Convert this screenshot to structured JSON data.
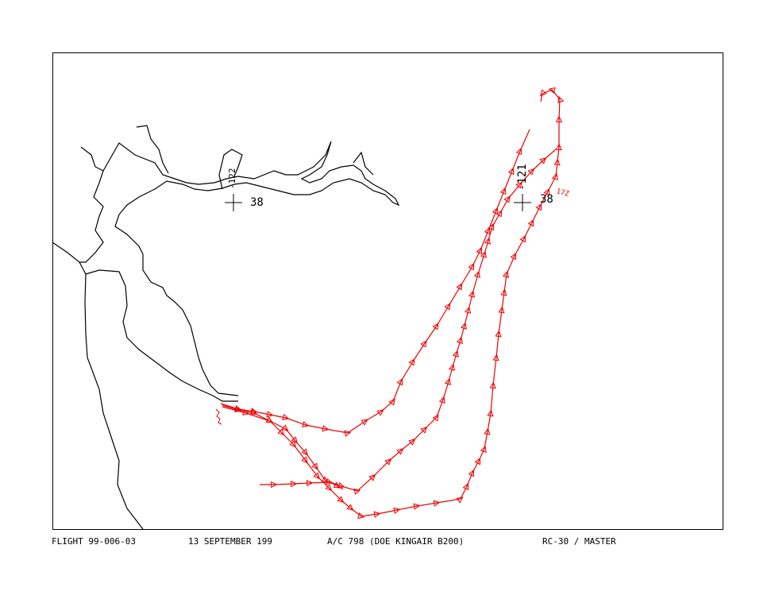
{
  "map": {
    "grid_marks": [
      {
        "longitude": "-122",
        "latitude": "38"
      },
      {
        "longitude": "-121",
        "latitude": "38"
      }
    ],
    "time_label": "17Z",
    "footer": {
      "flight": "FLIGHT 99-006-03",
      "date": "13 SEPTEMBER 199",
      "aircraft": "A/C 798 (DOE KINGAIR B200)",
      "camera": "RC-30 / MASTER"
    }
  }
}
